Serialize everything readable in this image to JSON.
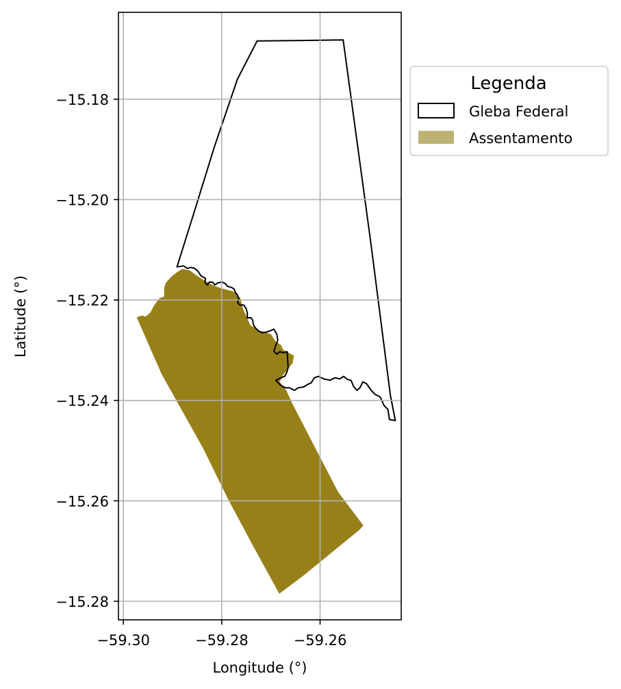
{
  "map": {
    "axes": {
      "xlabel": "Longitude (°)",
      "ylabel": "Latitude (°)",
      "xlim": [
        -59.301,
        -59.2435
      ],
      "ylim": [
        -15.2837,
        -15.1627
      ],
      "x_ticks": [
        {
          "value": -59.3,
          "label": "−59.30"
        },
        {
          "value": -59.28,
          "label": "−59.28"
        },
        {
          "value": -59.26,
          "label": "−59.26"
        }
      ],
      "y_ticks": [
        {
          "value": -15.18,
          "label": "−15.18"
        },
        {
          "value": -15.2,
          "label": "−15.20"
        },
        {
          "value": -15.22,
          "label": "−15.22"
        },
        {
          "value": -15.24,
          "label": "−15.24"
        },
        {
          "value": -15.26,
          "label": "−15.26"
        },
        {
          "value": -15.28,
          "label": "−15.28"
        }
      ],
      "grid": true
    },
    "legend": {
      "title": "Legenda",
      "placement": "outside-upper-right",
      "items": [
        {
          "label": "Gleba Federal",
          "type": "outline",
          "edge_color": "#000000",
          "fill": "#ffffff"
        },
        {
          "label": "Assentamento",
          "type": "fill",
          "fill": "#bdb273"
        }
      ]
    },
    "layers": [
      {
        "name": "Gleba Federal",
        "style": {
          "fill": "none",
          "stroke": "#000000"
        },
        "coords": [
          [
            -59.2891,
            -15.2134
          ],
          [
            -59.2858,
            -15.2031
          ],
          [
            -59.2815,
            -15.1895
          ],
          [
            -59.2768,
            -15.176
          ],
          [
            -59.2728,
            -15.1684
          ],
          [
            -59.2638,
            -15.1683
          ],
          [
            -59.2553,
            -15.1682
          ],
          [
            -59.2497,
            -15.2085
          ],
          [
            -59.2457,
            -15.239
          ],
          [
            -59.2447,
            -15.244
          ],
          [
            -59.2459,
            -15.2438
          ],
          [
            -59.2462,
            -15.2418
          ],
          [
            -59.247,
            -15.241
          ],
          [
            -59.2478,
            -15.2393
          ],
          [
            -59.2488,
            -15.2388
          ],
          [
            -59.2496,
            -15.238
          ],
          [
            -59.2505,
            -15.2367
          ],
          [
            -59.2513,
            -15.2363
          ],
          [
            -59.2519,
            -15.2375
          ],
          [
            -59.2525,
            -15.238
          ],
          [
            -59.2532,
            -15.2372
          ],
          [
            -59.2537,
            -15.236
          ],
          [
            -59.2545,
            -15.2358
          ],
          [
            -59.2552,
            -15.2352
          ],
          [
            -59.256,
            -15.2357
          ],
          [
            -59.257,
            -15.2355
          ],
          [
            -59.258,
            -15.236
          ],
          [
            -59.2593,
            -15.2357
          ],
          [
            -59.2603,
            -15.2352
          ],
          [
            -59.2612,
            -15.2355
          ],
          [
            -59.2618,
            -15.2365
          ],
          [
            -59.2625,
            -15.2368
          ],
          [
            -59.2633,
            -15.2373
          ],
          [
            -59.2645,
            -15.2375
          ],
          [
            -59.2652,
            -15.238
          ],
          [
            -59.2662,
            -15.2375
          ],
          [
            -59.267,
            -15.2375
          ],
          [
            -59.268,
            -15.237
          ],
          [
            -59.269,
            -15.236
          ],
          [
            -59.268,
            -15.2355
          ],
          [
            -59.2672,
            -15.2352
          ],
          [
            -59.2668,
            -15.2345
          ],
          [
            -59.2665,
            -15.2335
          ],
          [
            -59.2666,
            -15.2318
          ],
          [
            -59.2667,
            -15.2303
          ],
          [
            -59.2675,
            -15.2305
          ],
          [
            -59.2682,
            -15.2303
          ],
          [
            -59.2688,
            -15.2308
          ],
          [
            -59.2694,
            -15.2302
          ],
          [
            -59.269,
            -15.229
          ],
          [
            -59.2686,
            -15.228
          ],
          [
            -59.2688,
            -15.2268
          ],
          [
            -59.2694,
            -15.2258
          ],
          [
            -59.2703,
            -15.2262
          ],
          [
            -59.271,
            -15.2264
          ],
          [
            -59.2718,
            -15.2265
          ],
          [
            -59.2725,
            -15.2262
          ],
          [
            -59.2732,
            -15.2255
          ],
          [
            -59.2736,
            -15.2248
          ],
          [
            -59.2737,
            -15.224
          ],
          [
            -59.2741,
            -15.2235
          ],
          [
            -59.2748,
            -15.2236
          ],
          [
            -59.2748,
            -15.2226
          ],
          [
            -59.275,
            -15.2218
          ],
          [
            -59.2755,
            -15.221
          ],
          [
            -59.2763,
            -15.221
          ],
          [
            -59.2768,
            -15.2205
          ],
          [
            -59.2765,
            -15.2198
          ],
          [
            -59.2768,
            -15.219
          ],
          [
            -59.2772,
            -15.2185
          ],
          [
            -59.2775,
            -15.2178
          ],
          [
            -59.278,
            -15.2175
          ],
          [
            -59.2788,
            -15.2173
          ],
          [
            -59.2793,
            -15.2167
          ],
          [
            -59.28,
            -15.2164
          ],
          [
            -59.2808,
            -15.2166
          ],
          [
            -59.2814,
            -15.217
          ],
          [
            -59.2818,
            -15.2165
          ],
          [
            -59.2825,
            -15.2164
          ],
          [
            -59.2829,
            -15.217
          ],
          [
            -59.2834,
            -15.2165
          ],
          [
            -59.2833,
            -15.2157
          ],
          [
            -59.2842,
            -15.2152
          ],
          [
            -59.2848,
            -15.2143
          ],
          [
            -59.2855,
            -15.2137
          ],
          [
            -59.2863,
            -15.2135
          ],
          [
            -59.287,
            -15.2137
          ],
          [
            -59.2878,
            -15.2132
          ],
          [
            -59.2891,
            -15.2134
          ]
        ]
      },
      {
        "name": "Assentamento",
        "style": {
          "fill": "#988018",
          "stroke": "none"
        },
        "coords": [
          [
            -59.2973,
            -15.2234
          ],
          [
            -59.2962,
            -15.2231
          ],
          [
            -59.2955,
            -15.2233
          ],
          [
            -59.2945,
            -15.2225
          ],
          [
            -59.2937,
            -15.221
          ],
          [
            -59.2927,
            -15.2197
          ],
          [
            -59.2917,
            -15.2193
          ],
          [
            -59.2917,
            -15.2175
          ],
          [
            -59.2913,
            -15.2165
          ],
          [
            -59.2901,
            -15.2152
          ],
          [
            -59.289,
            -15.2144
          ],
          [
            -59.288,
            -15.2138
          ],
          [
            -59.2865,
            -15.2141
          ],
          [
            -59.285,
            -15.2152
          ],
          [
            -59.283,
            -15.2164
          ],
          [
            -59.2815,
            -15.2172
          ],
          [
            -59.2799,
            -15.2177
          ],
          [
            -59.2776,
            -15.2183
          ],
          [
            -59.2762,
            -15.2196
          ],
          [
            -59.2756,
            -15.2219
          ],
          [
            -59.2742,
            -15.225
          ],
          [
            -59.2723,
            -15.2261
          ],
          [
            -59.27,
            -15.2268
          ],
          [
            -59.269,
            -15.2283
          ],
          [
            -59.268,
            -15.2289
          ],
          [
            -59.2675,
            -15.2299
          ],
          [
            -59.2653,
            -15.2311
          ],
          [
            -59.2656,
            -15.2326
          ],
          [
            -59.2674,
            -15.2348
          ],
          [
            -59.2682,
            -15.2363
          ],
          [
            -59.2668,
            -15.2381
          ],
          [
            -59.2657,
            -15.2405
          ],
          [
            -59.2609,
            -15.2496
          ],
          [
            -59.2563,
            -15.2583
          ],
          [
            -59.2512,
            -15.2649
          ],
          [
            -59.2519,
            -15.2657
          ],
          [
            -59.2634,
            -15.2749
          ],
          [
            -59.2683,
            -15.2785
          ],
          [
            -59.2735,
            -15.2692
          ],
          [
            -59.2788,
            -15.2595
          ],
          [
            -59.2838,
            -15.2495
          ],
          [
            -59.2878,
            -15.2425
          ],
          [
            -59.2922,
            -15.2348
          ],
          [
            -59.2945,
            -15.2297
          ],
          [
            -59.2973,
            -15.2234
          ]
        ]
      }
    ]
  }
}
